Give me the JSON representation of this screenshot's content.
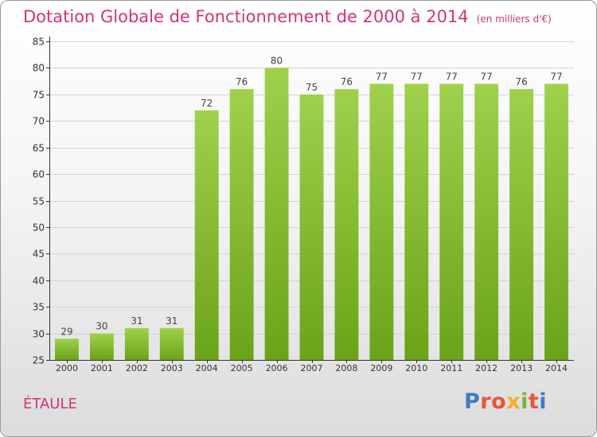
{
  "title": "Dotation Globale de Fonctionnement de 2000 à 2014",
  "subtitle": "(en milliers d'€)",
  "place": "ÉTAULE",
  "logo": {
    "text": "Proxiti",
    "colors": [
      "#3a7fc4",
      "#e8553a",
      "#e8553a",
      "#f2b124",
      "#7bb43a",
      "#e8553a",
      "#3a7fc4"
    ]
  },
  "colors": {
    "title": "#d4327a",
    "bar_light": "#9fd14c",
    "bar_dark": "#6aa318",
    "grid": "#d4d4d4",
    "axis": "#333333"
  },
  "chart_data": {
    "type": "bar",
    "categories": [
      "2000",
      "2001",
      "2002",
      "2003",
      "2004",
      "2005",
      "2006",
      "2007",
      "2008",
      "2009",
      "2010",
      "2011",
      "2012",
      "2013",
      "2014"
    ],
    "values": [
      29,
      30,
      31,
      31,
      72,
      76,
      80,
      75,
      76,
      77,
      77,
      77,
      77,
      76,
      77
    ],
    "title": "Dotation Globale de Fonctionnement de 2000 à 2014",
    "subtitle": "(en milliers d'€)",
    "xlabel": "",
    "ylabel": "",
    "ylim": [
      25,
      85
    ],
    "yticks": [
      25,
      30,
      35,
      40,
      45,
      50,
      55,
      60,
      65,
      70,
      75,
      80,
      85
    ],
    "grid": true,
    "legend": "none"
  }
}
